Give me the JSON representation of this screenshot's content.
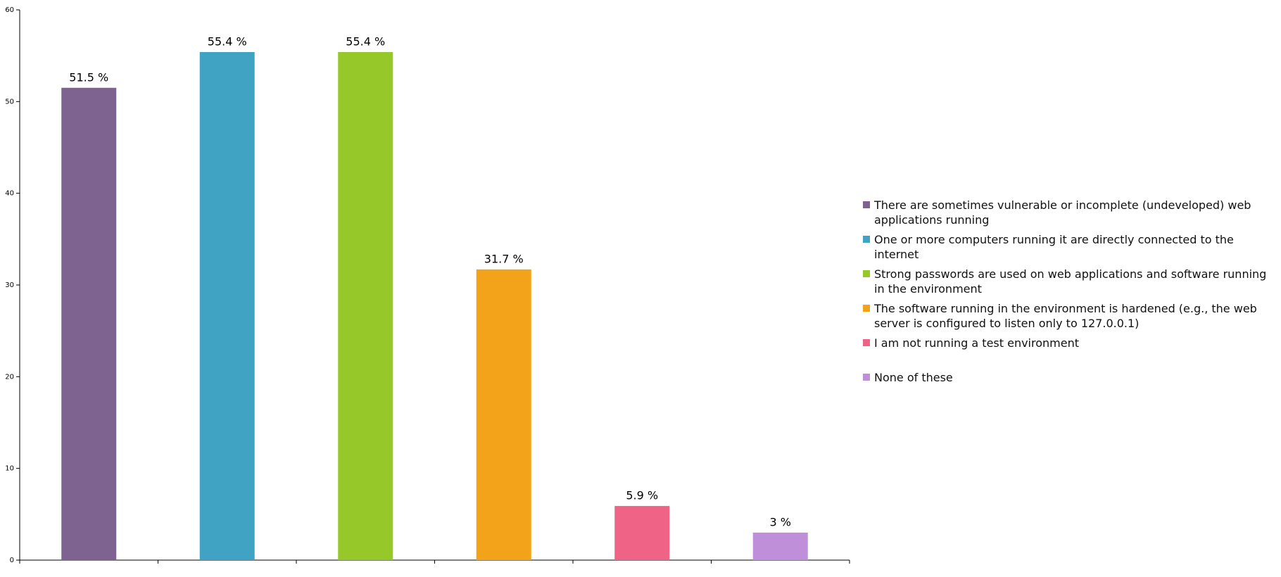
{
  "chart_data": {
    "type": "bar",
    "categories": [
      "There are sometimes vulnerable or incomplete (undeveloped) web applications running",
      "One or more computers running it are directly connected to the internet",
      "Strong passwords are used on web applications and software running in the environment",
      "The software running in the environment is hardened (e.g., the web server is configured to listen only to 127.0.0.1)",
      "I am not running a test environment",
      "None of these"
    ],
    "values": [
      51.5,
      55.4,
      55.4,
      31.7,
      5.9,
      3
    ],
    "value_labels": [
      "51.5 %",
      "55.4 %",
      "55.4 %",
      "31.7 %",
      "5.9 %",
      "3 %"
    ],
    "colors": [
      "#7e6290",
      "#40a3c4",
      "#95c828",
      "#f3a31a",
      "#ee6386",
      "#bf90d9"
    ],
    "ylim": [
      0,
      60
    ],
    "yticks": [
      0,
      10,
      20,
      30,
      40,
      50,
      60
    ],
    "legend": "right"
  }
}
